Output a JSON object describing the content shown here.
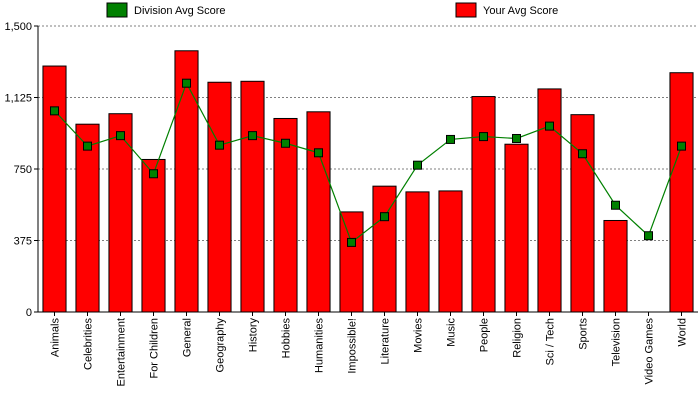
{
  "chart_data": {
    "type": "bar",
    "categories": [
      "Animals",
      "Celebrities",
      "Entertainment",
      "For Children",
      "General",
      "Geography",
      "History",
      "Hobbies",
      "Humanities",
      "Impossible!",
      "Literature",
      "Movies",
      "Music",
      "People",
      "Religion",
      "Sci / Tech",
      "Sports",
      "Television",
      "Video Games",
      "World"
    ],
    "series": [
      {
        "name": "Your Avg Score",
        "type": "bar",
        "color": "#ff0000",
        "values": [
          1290,
          985,
          1040,
          800,
          1370,
          1205,
          1210,
          1015,
          1050,
          525,
          660,
          630,
          635,
          1130,
          880,
          1170,
          1035,
          480,
          0,
          1255
        ]
      },
      {
        "name": "Division Avg Score",
        "type": "line",
        "color": "#008000",
        "values": [
          1055,
          870,
          925,
          725,
          1200,
          875,
          925,
          885,
          835,
          365,
          500,
          770,
          905,
          920,
          910,
          975,
          830,
          560,
          400,
          870
        ]
      }
    ],
    "yticks": [
      "0",
      "375",
      "750",
      "1,125",
      "1,500"
    ],
    "ytick_values": [
      0,
      375,
      750,
      1125,
      1500
    ],
    "ylim": [
      0,
      1500
    ],
    "grid": true,
    "legend_placement": "top"
  }
}
